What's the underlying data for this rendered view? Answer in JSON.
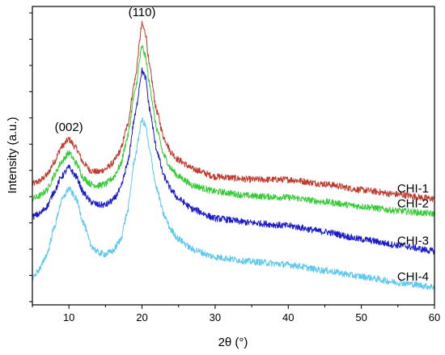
{
  "chart_data": {
    "type": "line",
    "title": "",
    "xlabel": "2θ (°)",
    "ylabel": "Intensity (a.u.)",
    "xlim": [
      5,
      60
    ],
    "ylim": [
      0,
      10
    ],
    "x_ticks": [
      10,
      20,
      30,
      40,
      50,
      60
    ],
    "y_ticks_count": 12,
    "y_tick_labels_shown": false,
    "grid": false,
    "legend": "inline labels at right end of each curve",
    "annotations": [
      {
        "text": "(002)",
        "x": 10
      },
      {
        "text": "(110)",
        "x": 20
      }
    ],
    "series": [
      {
        "name": "CHI-1",
        "color": "#c0392b",
        "points": [
          [
            5,
            4.05
          ],
          [
            6,
            4.15
          ],
          [
            7,
            4.35
          ],
          [
            8,
            4.8
          ],
          [
            9,
            5.3
          ],
          [
            10,
            5.55
          ],
          [
            11,
            5.25
          ],
          [
            12,
            4.75
          ],
          [
            13,
            4.5
          ],
          [
            14,
            4.45
          ],
          [
            15,
            4.55
          ],
          [
            16,
            4.75
          ],
          [
            17,
            5.15
          ],
          [
            18,
            6.0
          ],
          [
            19,
            7.5
          ],
          [
            20,
            9.4
          ],
          [
            20.5,
            9.1
          ],
          [
            21,
            8.0
          ],
          [
            22,
            6.5
          ],
          [
            23,
            5.6
          ],
          [
            24,
            5.1
          ],
          [
            25,
            4.85
          ],
          [
            27,
            4.55
          ],
          [
            30,
            4.3
          ],
          [
            35,
            4.2
          ],
          [
            40,
            4.2
          ],
          [
            45,
            4.05
          ],
          [
            50,
            3.85
          ],
          [
            55,
            3.7
          ],
          [
            60,
            3.55
          ]
        ]
      },
      {
        "name": "CHI-2",
        "color": "#33cc33",
        "points": [
          [
            5,
            3.55
          ],
          [
            6,
            3.65
          ],
          [
            7,
            3.85
          ],
          [
            8,
            4.35
          ],
          [
            9,
            4.8
          ],
          [
            10,
            5.1
          ],
          [
            11,
            4.75
          ],
          [
            12,
            4.25
          ],
          [
            13,
            4.05
          ],
          [
            14,
            4.0
          ],
          [
            15,
            4.05
          ],
          [
            16,
            4.25
          ],
          [
            17,
            4.65
          ],
          [
            18,
            5.6
          ],
          [
            19,
            7.1
          ],
          [
            20,
            8.65
          ],
          [
            20.5,
            8.3
          ],
          [
            21,
            7.4
          ],
          [
            22,
            5.9
          ],
          [
            23,
            5.0
          ],
          [
            24,
            4.55
          ],
          [
            25,
            4.3
          ],
          [
            27,
            4.0
          ],
          [
            30,
            3.8
          ],
          [
            35,
            3.65
          ],
          [
            40,
            3.6
          ],
          [
            45,
            3.45
          ],
          [
            50,
            3.3
          ],
          [
            55,
            3.15
          ],
          [
            60,
            3.05
          ]
        ]
      },
      {
        "name": "CHI-3",
        "color": "#1a1acc",
        "points": [
          [
            5,
            2.95
          ],
          [
            6,
            3.05
          ],
          [
            7,
            3.3
          ],
          [
            8,
            3.8
          ],
          [
            9,
            4.3
          ],
          [
            10,
            4.6
          ],
          [
            11,
            4.3
          ],
          [
            12,
            3.75
          ],
          [
            13,
            3.45
          ],
          [
            14,
            3.35
          ],
          [
            15,
            3.35
          ],
          [
            16,
            3.5
          ],
          [
            17,
            3.85
          ],
          [
            18,
            4.7
          ],
          [
            19,
            6.3
          ],
          [
            20,
            7.85
          ],
          [
            20.5,
            7.6
          ],
          [
            21,
            6.6
          ],
          [
            22,
            5.2
          ],
          [
            23,
            4.3
          ],
          [
            24,
            3.85
          ],
          [
            25,
            3.55
          ],
          [
            27,
            3.2
          ],
          [
            30,
            2.9
          ],
          [
            35,
            2.75
          ],
          [
            40,
            2.65
          ],
          [
            45,
            2.45
          ],
          [
            50,
            2.2
          ],
          [
            55,
            2.0
          ],
          [
            60,
            1.8
          ]
        ]
      },
      {
        "name": "CHI-4",
        "color": "#5bc8f0",
        "points": [
          [
            5,
            0.9
          ],
          [
            6,
            1.2
          ],
          [
            7,
            1.7
          ],
          [
            8,
            2.6
          ],
          [
            9,
            3.5
          ],
          [
            10,
            3.9
          ],
          [
            11,
            3.55
          ],
          [
            12,
            2.75
          ],
          [
            13,
            2.0
          ],
          [
            14,
            1.75
          ],
          [
            15,
            1.7
          ],
          [
            16,
            1.8
          ],
          [
            17,
            2.15
          ],
          [
            18,
            3.1
          ],
          [
            19,
            4.9
          ],
          [
            20,
            6.2
          ],
          [
            20.5,
            6.0
          ],
          [
            21,
            5.2
          ],
          [
            22,
            3.9
          ],
          [
            23,
            3.0
          ],
          [
            24,
            2.5
          ],
          [
            25,
            2.2
          ],
          [
            27,
            1.85
          ],
          [
            30,
            1.6
          ],
          [
            35,
            1.45
          ],
          [
            40,
            1.35
          ],
          [
            45,
            1.15
          ],
          [
            50,
            0.95
          ],
          [
            55,
            0.75
          ],
          [
            60,
            0.6
          ]
        ]
      }
    ]
  }
}
